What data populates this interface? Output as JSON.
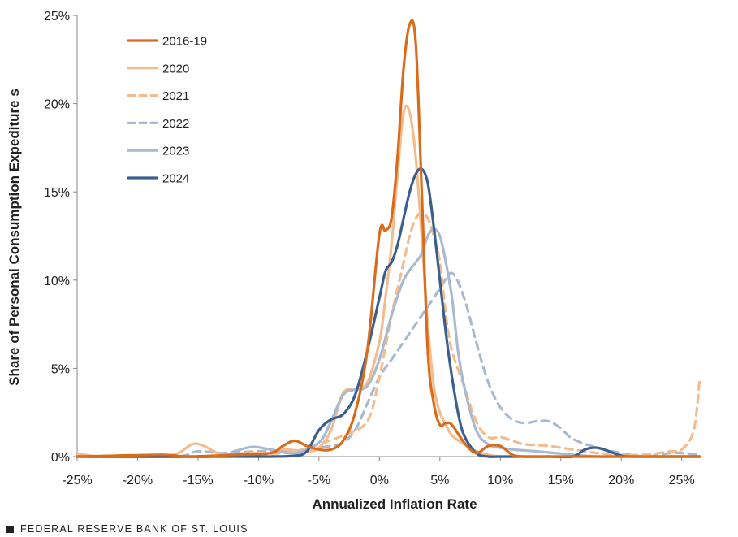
{
  "chart_data": {
    "type": "line",
    "title": "",
    "xlabel": "Annualized Inflation Rate",
    "ylabel": "Share of Personal Consumption Expediture s",
    "xlim": [
      -25,
      26.5
    ],
    "ylim": [
      0,
      25
    ],
    "x_ticks": [
      -25,
      -20,
      -15,
      -10,
      -5,
      0,
      5,
      10,
      15,
      20,
      25
    ],
    "x_tick_labels": [
      "-25%",
      "-20%",
      "-15%",
      "-10%",
      "-5%",
      "0%",
      "5%",
      "10%",
      "15%",
      "20%",
      "25%"
    ],
    "y_ticks": [
      0,
      5,
      10,
      15,
      20,
      25
    ],
    "y_tick_labels": [
      "0%",
      "5%",
      "10%",
      "15%",
      "20%",
      "25%"
    ],
    "grid": false,
    "legend_position": "top-left",
    "series": [
      {
        "name": "2016-19",
        "color": "#D96B1A",
        "dash": "solid",
        "x": [
          -25,
          -18,
          -16,
          -12,
          -9,
          -8,
          -7,
          -6,
          -5,
          -4,
          -3,
          -2,
          -1,
          0,
          0.5,
          1,
          1.5,
          2,
          2.5,
          3,
          3.5,
          4,
          4.5,
          5,
          5.5,
          6,
          7,
          8,
          9,
          10,
          11,
          12,
          14,
          17,
          20,
          25,
          26.5
        ],
        "y": [
          0,
          0.1,
          0,
          0.1,
          0.2,
          0.6,
          0.9,
          0.6,
          0.4,
          0.4,
          0.9,
          2.5,
          6,
          12.6,
          12.8,
          13.5,
          17,
          22,
          24.5,
          23.5,
          15,
          6,
          3,
          1.8,
          1.9,
          1.8,
          0.8,
          0.2,
          0.6,
          0.6,
          0.1,
          0,
          0,
          0,
          0,
          0,
          0
        ]
      },
      {
        "name": "2020",
        "color": "#F2BC8F",
        "dash": "solid",
        "x": [
          -25,
          -23,
          -20,
          -17,
          -15.5,
          -14.5,
          -13,
          -11,
          -9,
          -8,
          -6,
          -5,
          -4,
          -3,
          -2,
          -1,
          0,
          0.5,
          1,
          1.5,
          2,
          2.5,
          3,
          3.5,
          4,
          4.5,
          5,
          5.5,
          6,
          7,
          8,
          9,
          10,
          12,
          15,
          20,
          25,
          26.5
        ],
        "y": [
          0.15,
          0,
          0,
          0.1,
          0.7,
          0.6,
          0.1,
          0.2,
          0.2,
          0.4,
          0.3,
          0.5,
          1.5,
          3.6,
          3.8,
          4.2,
          6.5,
          9,
          12,
          16,
          19.5,
          19.5,
          17,
          12.5,
          7.5,
          4,
          2.5,
          1.8,
          1.2,
          0.7,
          0.3,
          0.1,
          0,
          0,
          0,
          0,
          0,
          0
        ]
      },
      {
        "name": "2021",
        "color": "#F2BC8F",
        "dash": "dashed",
        "x": [
          -25,
          -15,
          -10,
          -7,
          -5,
          -3,
          -1,
          0,
          1,
          2,
          2.5,
          3,
          3.5,
          4,
          4.5,
          5,
          5.5,
          6,
          7,
          8,
          9,
          10,
          11,
          12,
          14,
          16,
          18,
          20,
          22,
          24,
          25,
          26,
          26.5
        ],
        "y": [
          0,
          0,
          0.1,
          0.3,
          0.7,
          1.2,
          2,
          4.5,
          8,
          11,
          12.5,
          13.5,
          13.8,
          13.5,
          12.5,
          11,
          8,
          6,
          4,
          2,
          1.1,
          1.1,
          0.9,
          0.7,
          0.6,
          0.4,
          0.2,
          0.1,
          0.1,
          0.3,
          0.4,
          1.5,
          4.5
        ]
      },
      {
        "name": "2022",
        "color": "#A9B9D0",
        "dash": "dashed",
        "x": [
          -25,
          -17,
          -15,
          -13,
          -10,
          -8,
          -6,
          -5,
          -4,
          -3,
          -2,
          -1,
          0,
          1,
          2,
          3,
          4,
          5,
          6,
          7,
          8,
          9,
          10,
          11,
          12,
          13,
          14,
          15,
          16,
          18,
          20,
          22,
          24,
          25,
          26.5
        ],
        "y": [
          0,
          0,
          0.3,
          0.2,
          0.3,
          0.3,
          0.3,
          0.5,
          0.6,
          0.8,
          1.5,
          3,
          4.5,
          5.5,
          6.5,
          7.5,
          8.5,
          9.5,
          10.4,
          9,
          6.5,
          4.2,
          2.8,
          2.1,
          1.9,
          2.0,
          2.0,
          1.6,
          1,
          0.5,
          0.2,
          0,
          0.2,
          0.2,
          0.1
        ]
      },
      {
        "name": "2023",
        "color": "#A9B9D0",
        "dash": "solid",
        "x": [
          -25,
          -14,
          -12,
          -10.5,
          -9,
          -7,
          -5,
          -4,
          -3,
          -2,
          -1,
          0,
          1,
          2,
          3,
          3.5,
          4,
          4.5,
          5,
          5.5,
          6,
          6.5,
          7,
          8,
          9,
          10,
          11,
          13,
          16,
          18,
          20,
          25,
          26.5
        ],
        "y": [
          0,
          0,
          0.3,
          0.55,
          0.4,
          0.2,
          0.8,
          2,
          3.5,
          3.8,
          4,
          5.5,
          8,
          10,
          11,
          11.5,
          12.5,
          12.9,
          12.5,
          11,
          9,
          6,
          4,
          1.5,
          0.7,
          0.5,
          0.4,
          0.3,
          0.1,
          0,
          0,
          0,
          0
        ]
      },
      {
        "name": "2024",
        "color": "#3A5F8E",
        "dash": "solid",
        "x": [
          -25,
          -12,
          -9,
          -7,
          -6,
          -5,
          -4,
          -3,
          -2,
          -1,
          0,
          0.5,
          1,
          1.5,
          2,
          2.5,
          3,
          3.5,
          4,
          4.5,
          5,
          5.5,
          6,
          6.5,
          7,
          8,
          9,
          10,
          12,
          14,
          16,
          17,
          18,
          19,
          20,
          21,
          25,
          26.5
        ],
        "y": [
          0,
          0,
          0,
          0.05,
          0.3,
          1.5,
          2.1,
          2.4,
          3.5,
          6,
          9,
          10.5,
          11,
          12,
          13.5,
          15,
          16,
          16.3,
          15.5,
          13,
          10,
          7,
          4.5,
          2.5,
          1.2,
          0.2,
          0,
          0,
          0,
          0,
          0,
          0.4,
          0.5,
          0.3,
          0.05,
          0,
          0,
          0
        ]
      }
    ]
  },
  "footer": {
    "text": "FEDERAL RESERVE BANK OF ST. LOUIS"
  }
}
